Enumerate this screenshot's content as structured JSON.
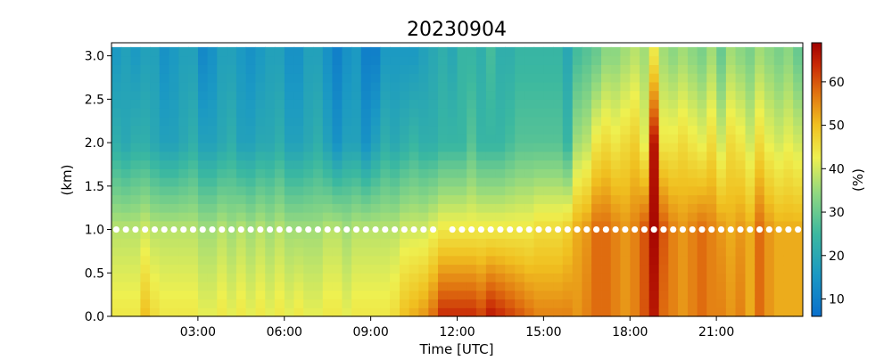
{
  "chart_data": {
    "type": "heatmap",
    "title": "20230904",
    "xlabel": "Time [UTC]",
    "ylabel": "(km)",
    "colorbar_label": "(%)",
    "colormap": "jet-like (blue → cyan → green → yellow → orange → dark red)",
    "xlim_hours": [
      0,
      24
    ],
    "ylim": [
      0,
      3.15
    ],
    "clim": [
      6,
      69
    ],
    "x_ticks": [
      {
        "hour": 3,
        "label": "03:00"
      },
      {
        "hour": 6,
        "label": "06:00"
      },
      {
        "hour": 9,
        "label": "09:00"
      },
      {
        "hour": 12,
        "label": "12:00"
      },
      {
        "hour": 15,
        "label": "15:00"
      },
      {
        "hour": 18,
        "label": "18:00"
      },
      {
        "hour": 21,
        "label": "21:00"
      }
    ],
    "y_ticks": [
      {
        "value": 0.0,
        "label": "0.0"
      },
      {
        "value": 0.5,
        "label": "0.5"
      },
      {
        "value": 1.0,
        "label": "1.0"
      },
      {
        "value": 1.5,
        "label": "1.5"
      },
      {
        "value": 2.0,
        "label": "2.0"
      },
      {
        "value": 2.5,
        "label": "2.5"
      },
      {
        "value": 3.0,
        "label": "3.0"
      }
    ],
    "colorbar_ticks": [
      {
        "value": 10,
        "label": "10"
      },
      {
        "value": 20,
        "label": "20"
      },
      {
        "value": 30,
        "label": "30"
      },
      {
        "value": 40,
        "label": "40"
      },
      {
        "value": 50,
        "label": "50"
      },
      {
        "value": 60,
        "label": "60"
      }
    ],
    "heights_km": [
      0.05,
      0.15,
      0.25,
      0.35,
      0.45,
      0.55,
      0.65,
      0.75,
      0.85,
      0.95,
      1.05,
      1.15,
      1.25,
      1.35,
      1.45,
      1.55,
      1.65,
      1.75,
      1.85,
      1.95,
      2.05,
      2.15,
      2.25,
      2.35,
      2.45,
      2.55,
      2.65,
      2.75,
      2.85,
      2.95,
      3.05
    ],
    "time_hours": [
      0.17,
      0.5,
      0.83,
      1.17,
      1.5,
      1.83,
      2.17,
      2.5,
      2.83,
      3.17,
      3.5,
      3.83,
      4.17,
      4.5,
      4.83,
      5.17,
      5.5,
      5.83,
      6.17,
      6.5,
      6.83,
      7.17,
      7.5,
      7.83,
      8.17,
      8.5,
      8.83,
      9.17,
      9.5,
      9.83,
      10.17,
      10.5,
      10.83,
      11.17,
      11.5,
      11.83,
      12.17,
      12.5,
      12.83,
      13.17,
      13.5,
      13.83,
      14.17,
      14.5,
      14.83,
      15.17,
      15.5,
      15.83,
      16.17,
      16.5,
      16.83,
      17.17,
      17.5,
      17.83,
      18.17,
      18.5,
      18.83,
      19.17,
      19.5,
      19.83,
      20.17,
      20.5,
      20.83,
      21.17,
      21.5,
      21.83,
      22.17,
      22.5,
      22.83,
      23.17,
      23.5,
      23.83
    ],
    "profile_value_at_0km_pct": [
      44,
      44,
      44,
      50,
      46,
      44,
      44,
      44,
      44,
      42,
      42,
      44,
      42,
      44,
      42,
      44,
      42,
      44,
      42,
      44,
      42,
      42,
      44,
      44,
      42,
      44,
      44,
      44,
      44,
      46,
      50,
      52,
      54,
      58,
      64,
      64,
      64,
      64,
      62,
      66,
      64,
      62,
      60,
      58,
      56,
      56,
      56,
      56,
      54,
      56,
      58,
      58,
      56,
      54,
      56,
      60,
      66,
      58,
      56,
      54,
      56,
      58,
      56,
      56,
      54,
      56,
      52,
      58,
      54,
      52,
      52,
      52
    ],
    "profile_value_at_1km_pct": [
      38,
      38,
      38,
      40,
      38,
      38,
      38,
      38,
      38,
      36,
      36,
      38,
      36,
      38,
      36,
      38,
      36,
      38,
      36,
      36,
      36,
      36,
      38,
      38,
      36,
      38,
      38,
      38,
      38,
      38,
      40,
      40,
      40,
      42,
      44,
      44,
      44,
      44,
      44,
      44,
      44,
      44,
      44,
      44,
      46,
      46,
      46,
      48,
      52,
      54,
      58,
      58,
      56,
      54,
      56,
      60,
      68,
      60,
      56,
      54,
      56,
      58,
      56,
      54,
      52,
      54,
      52,
      58,
      54,
      52,
      52,
      52
    ],
    "profile_value_at_2km_pct": [
      22,
      20,
      22,
      22,
      20,
      18,
      18,
      20,
      22,
      18,
      18,
      20,
      22,
      18,
      18,
      20,
      20,
      22,
      18,
      18,
      20,
      22,
      18,
      14,
      18,
      18,
      14,
      18,
      22,
      20,
      22,
      24,
      22,
      22,
      24,
      24,
      24,
      28,
      24,
      24,
      24,
      26,
      28,
      28,
      28,
      28,
      28,
      24,
      36,
      38,
      44,
      46,
      44,
      46,
      48,
      42,
      66,
      44,
      44,
      46,
      44,
      42,
      46,
      40,
      46,
      44,
      40,
      46,
      42,
      40,
      42,
      40
    ],
    "profile_value_at_3km_pct": [
      16,
      18,
      16,
      18,
      18,
      14,
      16,
      18,
      18,
      12,
      14,
      18,
      18,
      16,
      14,
      16,
      18,
      18,
      14,
      14,
      18,
      18,
      14,
      10,
      14,
      16,
      10,
      10,
      16,
      16,
      16,
      16,
      18,
      20,
      22,
      20,
      24,
      24,
      22,
      26,
      22,
      22,
      24,
      24,
      24,
      24,
      24,
      20,
      26,
      28,
      30,
      34,
      34,
      36,
      38,
      36,
      44,
      36,
      34,
      36,
      34,
      32,
      36,
      30,
      36,
      34,
      32,
      36,
      34,
      32,
      34,
      30
    ],
    "marker_series": {
      "height_km": 1.0,
      "color": "#ffffff",
      "marker": "filled circle",
      "count": 72,
      "gap_near_hour": 11.5
    }
  }
}
